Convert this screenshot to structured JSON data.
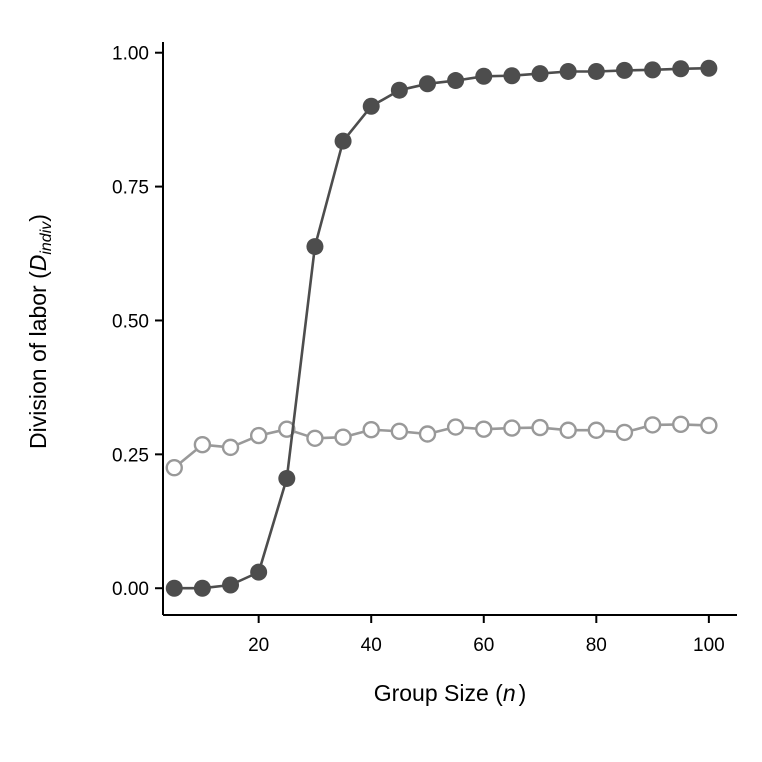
{
  "chart_data": {
    "type": "line",
    "title": "",
    "xlabel": {
      "prefix": "Group Size (",
      "var": "n",
      "suffix": ")"
    },
    "ylabel": {
      "prefix": "Division of labor (",
      "var": "D",
      "sub": "indiv",
      "suffix": ")"
    },
    "xlim": [
      3,
      105
    ],
    "ylim": [
      -0.05,
      1.02
    ],
    "xticks": [
      20,
      40,
      60,
      80,
      100
    ],
    "yticks": [
      0.0,
      0.25,
      0.5,
      0.75,
      1.0
    ],
    "xtick_labels": [
      "20",
      "40",
      "60",
      "80",
      "100"
    ],
    "ytick_labels": [
      "0.00",
      "0.25",
      "0.50",
      "0.75",
      "1.00"
    ],
    "grid": false,
    "legend": "none",
    "x": [
      5,
      10,
      15,
      20,
      25,
      30,
      35,
      40,
      45,
      50,
      55,
      60,
      65,
      70,
      75,
      80,
      85,
      90,
      95,
      100
    ],
    "series": [
      {
        "marker": "filled",
        "color": "#4d4d4d",
        "values": [
          0.0,
          0.0,
          0.006,
          0.03,
          0.205,
          0.638,
          0.835,
          0.9,
          0.93,
          0.942,
          0.948,
          0.956,
          0.957,
          0.961,
          0.965,
          0.965,
          0.967,
          0.968,
          0.97,
          0.971
        ]
      },
      {
        "marker": "open",
        "color": "#999999",
        "values": [
          0.225,
          0.268,
          0.263,
          0.285,
          0.297,
          0.28,
          0.282,
          0.296,
          0.293,
          0.288,
          0.301,
          0.297,
          0.299,
          0.3,
          0.295,
          0.295,
          0.291,
          0.305,
          0.306,
          0.304
        ]
      }
    ]
  }
}
